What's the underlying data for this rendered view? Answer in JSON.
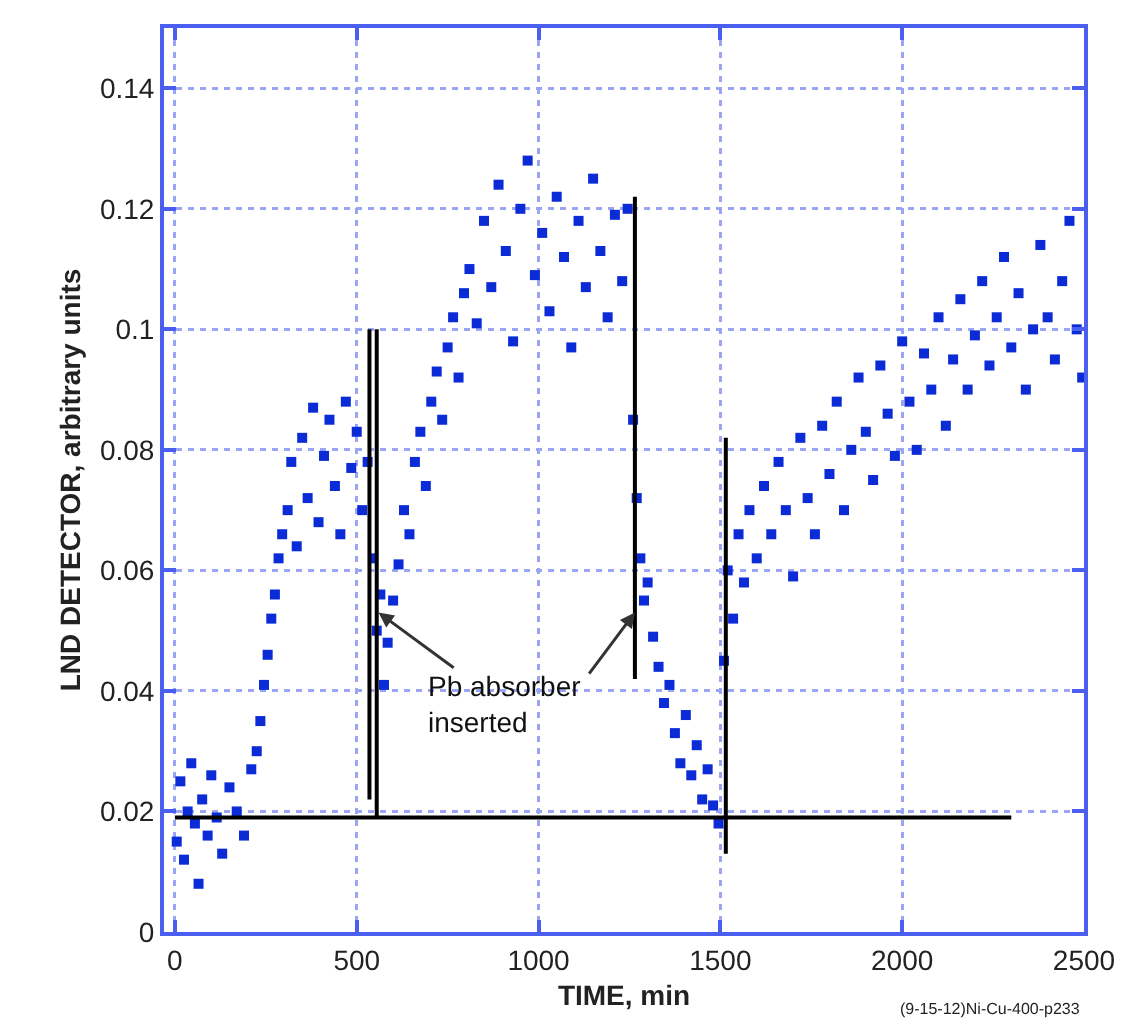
{
  "chart_data": {
    "type": "scatter",
    "xlabel": "TIME, min",
    "ylabel": "LND DETECTOR, arbitrary units",
    "xlim": [
      -30,
      2500
    ],
    "xticks": [
      0,
      500,
      1000,
      1500,
      2000,
      2500
    ],
    "ylim": [
      0,
      0.15
    ],
    "yticks": [
      0,
      0.02,
      0.04,
      0.06,
      0.08,
      0.1,
      0.12,
      0.14
    ],
    "grid": true,
    "annotations": [
      {
        "text": "Pb absorber\ninserted",
        "x": 560,
        "y": 0.053
      },
      "(9-15-12)Ni-Cu-400-p233"
    ],
    "series": [
      {
        "marker": "square",
        "color": "#0a2bd6",
        "x": [
          5,
          15,
          25,
          35,
          45,
          55,
          65,
          75,
          90,
          100,
          115,
          130,
          150,
          170,
          190,
          210,
          225,
          235,
          245,
          255,
          265,
          275,
          285,
          295,
          310,
          320,
          335,
          350,
          365,
          380,
          395,
          410,
          425,
          440,
          455,
          470,
          485,
          500,
          515,
          530,
          545,
          555,
          565,
          575,
          585,
          600,
          615,
          630,
          645,
          660,
          675,
          690,
          705,
          720,
          735,
          750,
          765,
          780,
          795,
          810,
          830,
          850,
          870,
          890,
          910,
          930,
          950,
          970,
          990,
          1010,
          1030,
          1050,
          1070,
          1090,
          1110,
          1130,
          1150,
          1170,
          1190,
          1210,
          1230,
          1245,
          1260,
          1270,
          1280,
          1290,
          1300,
          1315,
          1330,
          1345,
          1360,
          1375,
          1390,
          1405,
          1420,
          1435,
          1450,
          1465,
          1480,
          1495,
          1510,
          1520,
          1535,
          1550,
          1565,
          1580,
          1600,
          1620,
          1640,
          1660,
          1680,
          1700,
          1720,
          1740,
          1760,
          1780,
          1800,
          1820,
          1840,
          1860,
          1880,
          1900,
          1920,
          1940,
          1960,
          1980,
          2000,
          2020,
          2040,
          2060,
          2080,
          2100,
          2120,
          2140,
          2160,
          2180,
          2200,
          2220,
          2240,
          2260,
          2280,
          2300,
          2320,
          2340,
          2360,
          2380,
          2400,
          2420,
          2440,
          2460,
          2480,
          2495
        ],
        "values": [
          0.015,
          0.025,
          0.012,
          0.02,
          0.028,
          0.018,
          0.008,
          0.022,
          0.016,
          0.026,
          0.019,
          0.013,
          0.024,
          0.02,
          0.016,
          0.027,
          0.03,
          0.035,
          0.041,
          0.046,
          0.052,
          0.056,
          0.062,
          0.066,
          0.07,
          0.078,
          0.064,
          0.082,
          0.072,
          0.087,
          0.068,
          0.079,
          0.085,
          0.074,
          0.066,
          0.088,
          0.077,
          0.083,
          0.07,
          0.078,
          0.062,
          0.05,
          0.056,
          0.041,
          0.048,
          0.055,
          0.061,
          0.07,
          0.066,
          0.078,
          0.083,
          0.074,
          0.088,
          0.093,
          0.085,
          0.097,
          0.102,
          0.092,
          0.106,
          0.11,
          0.101,
          0.118,
          0.107,
          0.124,
          0.113,
          0.098,
          0.12,
          0.128,
          0.109,
          0.116,
          0.103,
          0.122,
          0.112,
          0.097,
          0.118,
          0.107,
          0.125,
          0.113,
          0.102,
          0.119,
          0.108,
          0.12,
          0.085,
          0.072,
          0.062,
          0.055,
          0.058,
          0.049,
          0.044,
          0.038,
          0.041,
          0.033,
          0.028,
          0.036,
          0.026,
          0.031,
          0.022,
          0.027,
          0.021,
          0.018,
          0.045,
          0.06,
          0.052,
          0.066,
          0.058,
          0.07,
          0.062,
          0.074,
          0.066,
          0.078,
          0.07,
          0.059,
          0.082,
          0.072,
          0.066,
          0.084,
          0.076,
          0.088,
          0.07,
          0.08,
          0.092,
          0.083,
          0.075,
          0.094,
          0.086,
          0.079,
          0.098,
          0.088,
          0.08,
          0.096,
          0.09,
          0.102,
          0.084,
          0.095,
          0.105,
          0.09,
          0.099,
          0.108,
          0.094,
          0.102,
          0.112,
          0.097,
          0.106,
          0.09,
          0.1,
          0.114,
          0.102,
          0.095,
          0.108,
          0.118,
          0.1,
          0.092
        ]
      },
      {
        "type": "line",
        "color": "#000000",
        "x": [
          0,
          2300
        ],
        "values": [
          0.019,
          0.019
        ]
      },
      {
        "type": "line",
        "color": "#000000",
        "x": [
          535,
          535
        ],
        "values": [
          0.022,
          0.1
        ]
      },
      {
        "type": "line",
        "color": "#000000",
        "x": [
          555,
          555
        ],
        "values": [
          0.019,
          0.1
        ]
      },
      {
        "type": "line",
        "color": "#000000",
        "x": [
          1265,
          1265
        ],
        "values": [
          0.042,
          0.122
        ]
      },
      {
        "type": "line",
        "color": "#000000",
        "x": [
          1515,
          1515
        ],
        "values": [
          0.013,
          0.082
        ]
      }
    ]
  }
}
